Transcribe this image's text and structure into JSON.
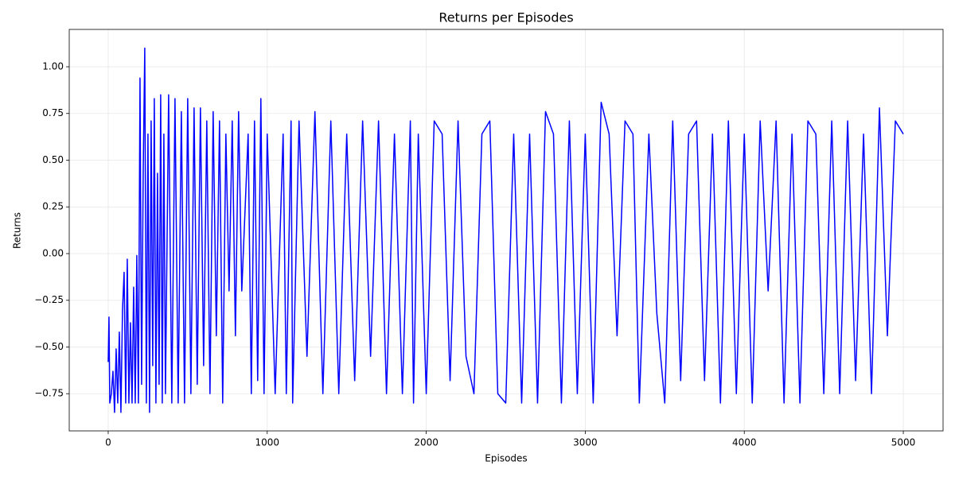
{
  "chart_data": {
    "type": "line",
    "title": "Returns per Episodes",
    "x_label": "Episodes",
    "y_label": "Returns",
    "color": "#0000ff",
    "grid": true,
    "xlim": [
      -245,
      5250
    ],
    "ylim": [
      -0.949,
      1.2
    ],
    "xticks": [
      0,
      1000,
      2000,
      3000,
      4000,
      5000
    ],
    "yticks": [
      {
        "value": -0.75,
        "label": "−0.75"
      },
      {
        "value": -0.5,
        "label": "−0.50"
      },
      {
        "value": -0.25,
        "label": "−0.25"
      },
      {
        "value": 0,
        "label": "0.00"
      },
      0.25,
      {
        "value": 0.5,
        "label": "0.50"
      },
      0.75,
      {
        "value": 1,
        "label": "1.00"
      }
    ],
    "x": [
      0,
      5,
      10,
      20,
      30,
      40,
      50,
      60,
      70,
      80,
      90,
      100,
      110,
      120,
      130,
      140,
      150,
      160,
      170,
      180,
      190,
      200,
      210,
      220,
      230,
      240,
      250,
      260,
      270,
      280,
      290,
      300,
      310,
      320,
      330,
      340,
      350,
      360,
      380,
      400,
      420,
      440,
      460,
      480,
      500,
      520,
      540,
      560,
      580,
      600,
      620,
      640,
      660,
      680,
      700,
      720,
      740,
      760,
      780,
      800,
      820,
      840,
      880,
      900,
      920,
      940,
      960,
      980,
      1000,
      1050,
      1100,
      1120,
      1150,
      1160,
      1200,
      1250,
      1300,
      1350,
      1400,
      1450,
      1500,
      1550,
      1600,
      1650,
      1700,
      1750,
      1800,
      1850,
      1900,
      1920,
      1950,
      2000,
      2050,
      2100,
      2150,
      2200,
      2250,
      2300,
      2350,
      2400,
      2450,
      2500,
      2550,
      2600,
      2650,
      2700,
      2750,
      2800,
      2850,
      2900,
      2950,
      3000,
      3050,
      3100,
      3150,
      3200,
      3250,
      3300,
      3340,
      3400,
      3450,
      3500,
      3550,
      3600,
      3650,
      3700,
      3750,
      3800,
      3850,
      3900,
      3950,
      4000,
      4050,
      4100,
      4150,
      4200,
      4250,
      4300,
      4350,
      4400,
      4450,
      4500,
      4550,
      4600,
      4650,
      4700,
      4750,
      4800,
      4850,
      4900,
      4950,
      5000
    ],
    "values": [
      -0.58,
      -0.34,
      -0.8,
      -0.75,
      -0.63,
      -0.85,
      -0.51,
      -0.8,
      -0.42,
      -0.85,
      -0.3,
      -0.1,
      -0.8,
      -0.03,
      -0.8,
      -0.37,
      -0.8,
      -0.18,
      -0.8,
      -0.01,
      -0.8,
      0.94,
      -0.7,
      0.42,
      1.1,
      -0.8,
      0.64,
      -0.85,
      0.71,
      -0.6,
      0.83,
      -0.8,
      0.43,
      -0.7,
      0.85,
      -0.8,
      0.64,
      -0.75,
      0.85,
      -0.8,
      0.83,
      -0.8,
      0.76,
      -0.8,
      0.83,
      -0.75,
      0.78,
      -0.7,
      0.78,
      -0.6,
      0.71,
      -0.75,
      0.76,
      -0.44,
      0.71,
      -0.8,
      0.64,
      -0.2,
      0.71,
      -0.44,
      0.76,
      -0.2,
      0.64,
      -0.75,
      0.71,
      -0.68,
      0.83,
      -0.75,
      0.64,
      -0.75,
      0.64,
      -0.75,
      0.71,
      -0.8,
      0.71,
      -0.55,
      0.76,
      -0.75,
      0.71,
      -0.75,
      0.64,
      -0.68,
      0.71,
      -0.55,
      0.71,
      -0.75,
      0.64,
      -0.75,
      0.71,
      -0.8,
      0.64,
      -0.75,
      0.71,
      0.64,
      -0.68,
      0.71,
      -0.55,
      -0.75,
      0.64,
      0.71,
      -0.75,
      -0.8,
      0.64,
      -0.8,
      0.64,
      -0.8,
      0.76,
      0.64,
      -0.8,
      0.71,
      -0.75,
      0.64,
      -0.8,
      0.81,
      0.64,
      -0.44,
      0.71,
      0.64,
      -0.8,
      0.64,
      -0.32,
      -0.8,
      0.71,
      -0.68,
      0.64,
      0.71,
      -0.68,
      0.64,
      -0.8,
      0.71,
      -0.75,
      0.64,
      -0.8,
      0.71,
      -0.2,
      0.71,
      -0.8,
      0.64,
      -0.8,
      0.71,
      0.64,
      -0.75,
      0.71,
      -0.75,
      0.71,
      -0.68,
      0.64,
      -0.75,
      0.78,
      -0.44,
      0.71,
      0.64
    ]
  }
}
